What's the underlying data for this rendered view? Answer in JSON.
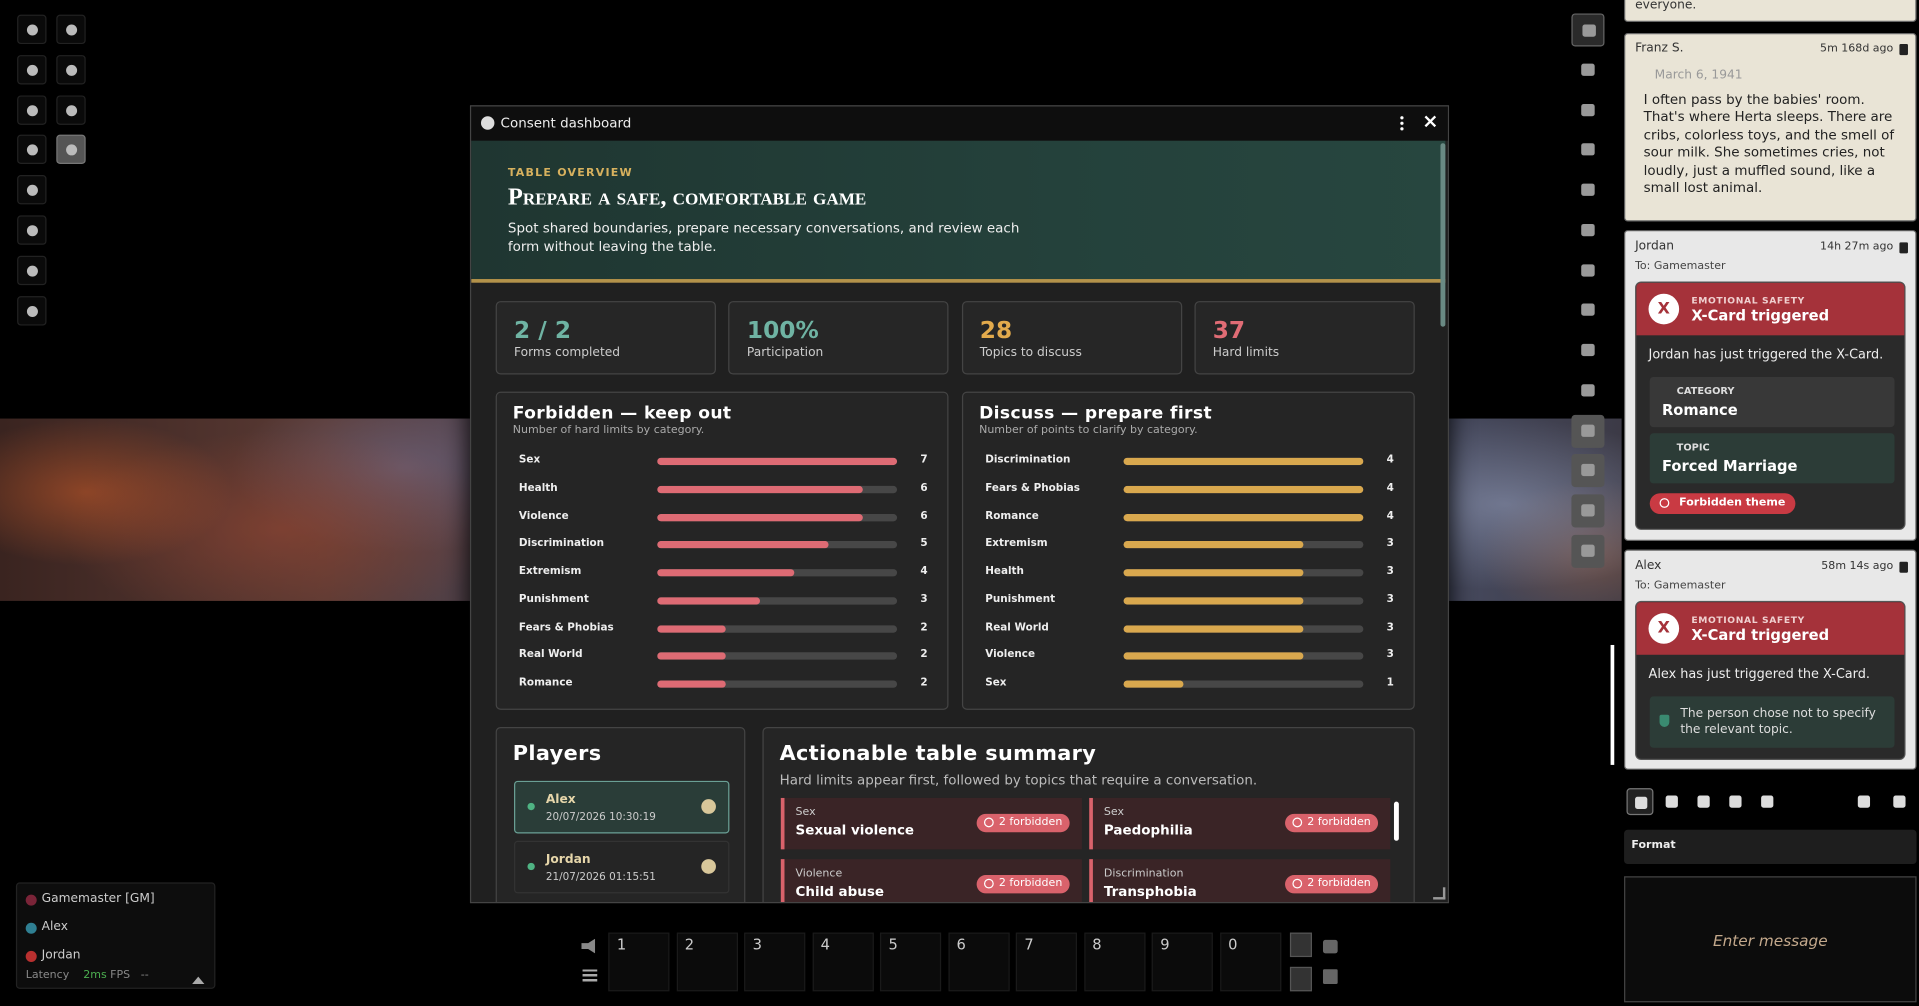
{
  "dialog": {
    "title": "Consent dashboard",
    "eyebrow": "TABLE OVERVIEW",
    "heading": "Prepare a safe, comfortable game",
    "intro": "Spot shared boundaries, prepare necessary conversations, and review each form without leaving the table.",
    "stats": [
      {
        "value": "2 / 2",
        "label": "Forms completed"
      },
      {
        "value": "100%",
        "label": "Participation"
      },
      {
        "value": 28,
        "label": "Topics to discuss"
      },
      {
        "value": 37,
        "label": "Hard limits"
      }
    ],
    "forbidden": {
      "title": "Forbidden — keep out",
      "subtitle": "Number of hard limits by category.",
      "color": "#de6b74",
      "rows": [
        {
          "label": "Sex",
          "value": 7
        },
        {
          "label": "Health",
          "value": 6
        },
        {
          "label": "Violence",
          "value": 6
        },
        {
          "label": "Discrimination",
          "value": 5
        },
        {
          "label": "Extremism",
          "value": 4
        },
        {
          "label": "Punishment",
          "value": 3
        },
        {
          "label": "Fears & Phobias",
          "value": 2
        },
        {
          "label": "Real World",
          "value": 2
        },
        {
          "label": "Romance",
          "value": 2
        }
      ]
    },
    "discuss": {
      "title": "Discuss — prepare first",
      "subtitle": "Number of points to clarify by category.",
      "color": "#d9a84e",
      "rows": [
        {
          "label": "Discrimination",
          "value": 4
        },
        {
          "label": "Fears & Phobias",
          "value": 4
        },
        {
          "label": "Romance",
          "value": 4
        },
        {
          "label": "Extremism",
          "value": 3
        },
        {
          "label": "Health",
          "value": 3
        },
        {
          "label": "Punishment",
          "value": 3
        },
        {
          "label": "Real World",
          "value": 3
        },
        {
          "label": "Violence",
          "value": 3
        },
        {
          "label": "Sex",
          "value": 1
        }
      ]
    },
    "players": {
      "title": "Players",
      "rows": [
        {
          "name": "Alex",
          "date": "20/07/2026 10:30:19"
        },
        {
          "name": "Jordan",
          "date": "21/07/2026 01:15:51"
        }
      ]
    },
    "summary": {
      "title": "Actionable table summary",
      "subtitle": "Hard limits appear first, followed by topics that require a conversation.",
      "items": [
        {
          "category": "Sex",
          "topic": "Sexual violence",
          "badge": "2 forbidden"
        },
        {
          "category": "Sex",
          "topic": "Paedophilia",
          "badge": "2 forbidden"
        },
        {
          "category": "Violence",
          "topic": "Child abuse",
          "badge": "2 forbidden"
        },
        {
          "category": "Discrimination",
          "topic": "Transphobia",
          "badge": "2 forbidden"
        }
      ]
    }
  },
  "chat": {
    "messages": [
      {
        "text": "everyone."
      },
      {
        "author": "Franz S.",
        "time": "5m 168d ago",
        "date": "March 6, 1941",
        "text": "I often pass by the babies' room. That's where Herta sleeps. There are cribs, colorless toys, and the smell of sour milk. She sometimes cries, not loudly, just a muffled sound, like a small lost animal."
      },
      {
        "author": "Jordan",
        "time": "14h 27m ago",
        "to": "To: Gamemaster",
        "card": {
          "icon": "X",
          "eyebrow": "EMOTIONAL SAFETY",
          "title": "X-Card triggered",
          "text": "Jordan has just triggered the X-Card.",
          "category_label": "CATEGORY",
          "category": "Romance",
          "topic_label": "TOPIC",
          "topic": "Forced Marriage",
          "badge": "Forbidden theme"
        }
      },
      {
        "author": "Alex",
        "time": "58m 14s ago",
        "to": "To: Gamemaster",
        "card": {
          "icon": "X",
          "eyebrow": "EMOTIONAL SAFETY",
          "title": "X-Card triggered",
          "text": "Alex has just triggered the X-Card.",
          "note": "The person chose not to specify the relevant topic."
        }
      }
    ]
  },
  "composer": {
    "format": "Format",
    "placeholder": "Enter message"
  },
  "player_list": {
    "players": [
      "Gamemaster [GM]",
      "Alex",
      "Jordan"
    ],
    "latency_label": "Latency",
    "latency": "2ms",
    "fps_label": "FPS",
    "fps": "--"
  },
  "hotbar": {
    "slots": [
      "1",
      "2",
      "3",
      "4",
      "5",
      "6",
      "7",
      "8",
      "9",
      "0"
    ]
  }
}
